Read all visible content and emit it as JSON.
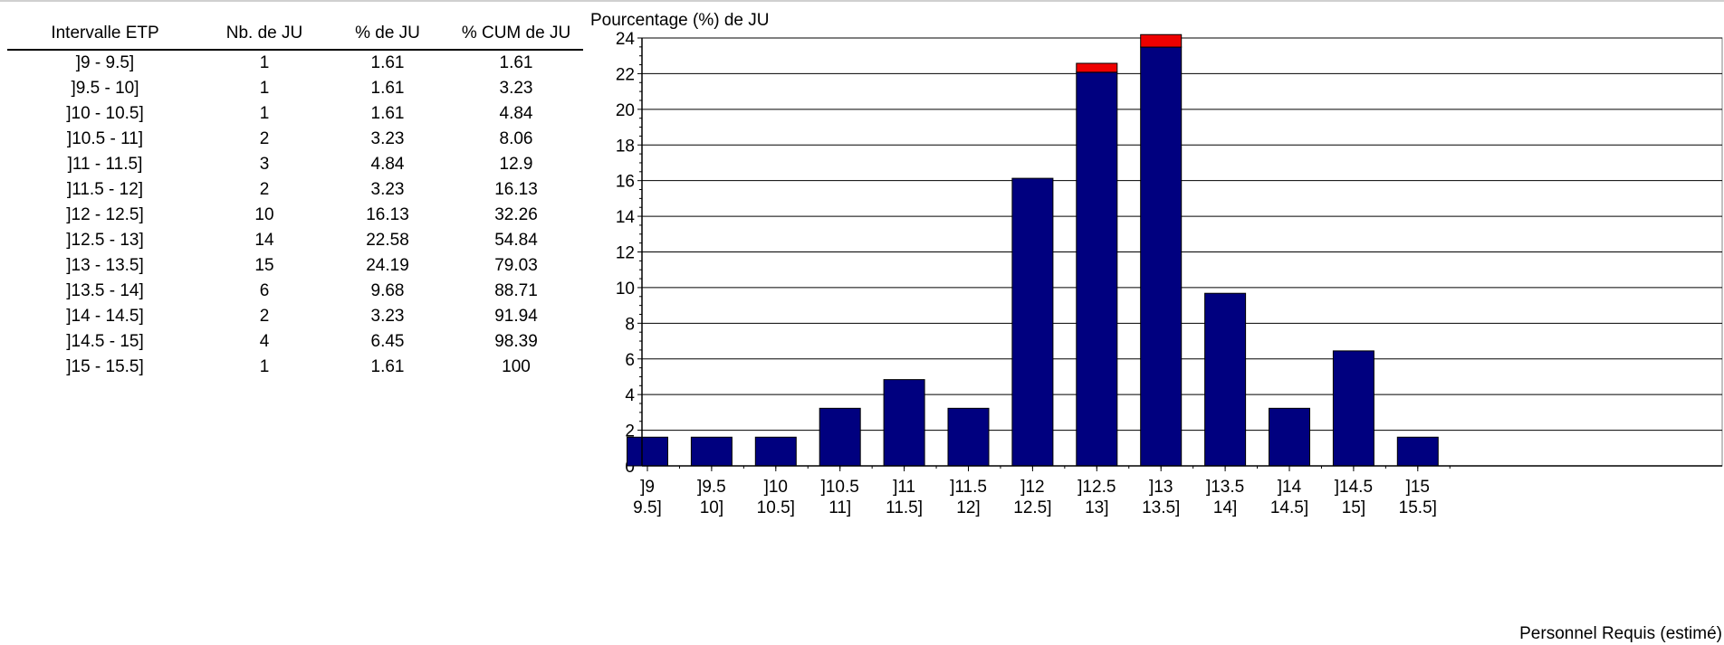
{
  "table": {
    "headers": [
      "Intervalle ETP",
      "Nb. de JU",
      "% de JU",
      "% CUM de JU"
    ],
    "rows": [
      [
        "]9 - 9.5]",
        "1",
        "1.61",
        "1.61"
      ],
      [
        "]9.5 - 10]",
        "1",
        "1.61",
        "3.23"
      ],
      [
        "]10 - 10.5]",
        "1",
        "1.61",
        "4.84"
      ],
      [
        "]10.5 - 11]",
        "2",
        "3.23",
        "8.06"
      ],
      [
        "]11 - 11.5]",
        "3",
        "4.84",
        "12.9"
      ],
      [
        "]11.5 - 12]",
        "2",
        "3.23",
        "16.13"
      ],
      [
        "]12 - 12.5]",
        "10",
        "16.13",
        "32.26"
      ],
      [
        "]12.5 - 13]",
        "14",
        "22.58",
        "54.84"
      ],
      [
        "]13 - 13.5]",
        "15",
        "24.19",
        "79.03"
      ],
      [
        "]13.5 - 14]",
        "6",
        "9.68",
        "88.71"
      ],
      [
        "]14 - 14.5]",
        "2",
        "3.23",
        "91.94"
      ],
      [
        "]14.5 - 15]",
        "4",
        "6.45",
        "98.39"
      ],
      [
        "]15 - 15.5]",
        "1",
        "1.61",
        "100"
      ]
    ]
  },
  "chart_data": {
    "type": "bar",
    "title": "",
    "ylabel": "Pourcentage (%) de JU",
    "xlabel": "Personnel Requis (estimé)",
    "ylim": [
      0,
      24
    ],
    "yticks": [
      0,
      2,
      4,
      6,
      8,
      10,
      12,
      14,
      16,
      18,
      20,
      22,
      24
    ],
    "grid": "horizontal",
    "categories": [
      [
        "]9",
        "9.5]"
      ],
      [
        "]9.5",
        "10]"
      ],
      [
        "]10",
        "10.5]"
      ],
      [
        "]10.5",
        "11]"
      ],
      [
        "]11",
        "11.5]"
      ],
      [
        "]11.5",
        "12]"
      ],
      [
        "]12",
        "12.5]"
      ],
      [
        "]12.5",
        "13]"
      ],
      [
        "]13",
        "13.5]"
      ],
      [
        "]13.5",
        "14]"
      ],
      [
        "]14",
        "14.5]"
      ],
      [
        "]14.5",
        "15]"
      ],
      [
        "]15",
        "15.5]"
      ]
    ],
    "values": [
      1.61,
      1.61,
      1.61,
      3.23,
      4.84,
      3.23,
      16.13,
      22.58,
      24.19,
      9.68,
      3.23,
      6.45,
      1.61
    ],
    "highlight_portion": [
      0,
      0,
      0,
      0,
      0,
      0,
      0,
      0.5,
      0.7,
      0,
      0,
      0,
      0
    ],
    "colors": {
      "bar": "#00007f",
      "highlight": "#ee0000",
      "axis": "#000000",
      "grid": "#000000",
      "frame": "#808080"
    }
  }
}
